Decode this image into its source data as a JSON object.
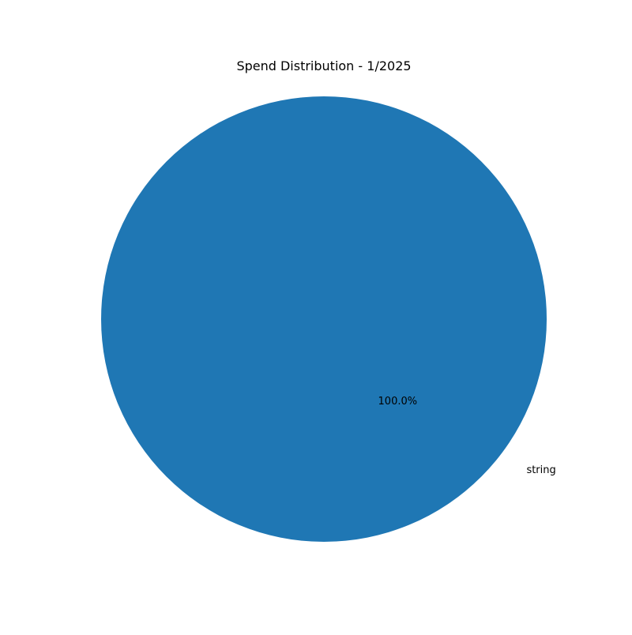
{
  "chart_data": {
    "type": "pie",
    "title": "Spend Distribution - 1/2025",
    "slices": [
      {
        "label": "string",
        "value": 100,
        "percent_label": "100.0%",
        "color": "#1f77b4"
      }
    ],
    "legend": "none"
  }
}
